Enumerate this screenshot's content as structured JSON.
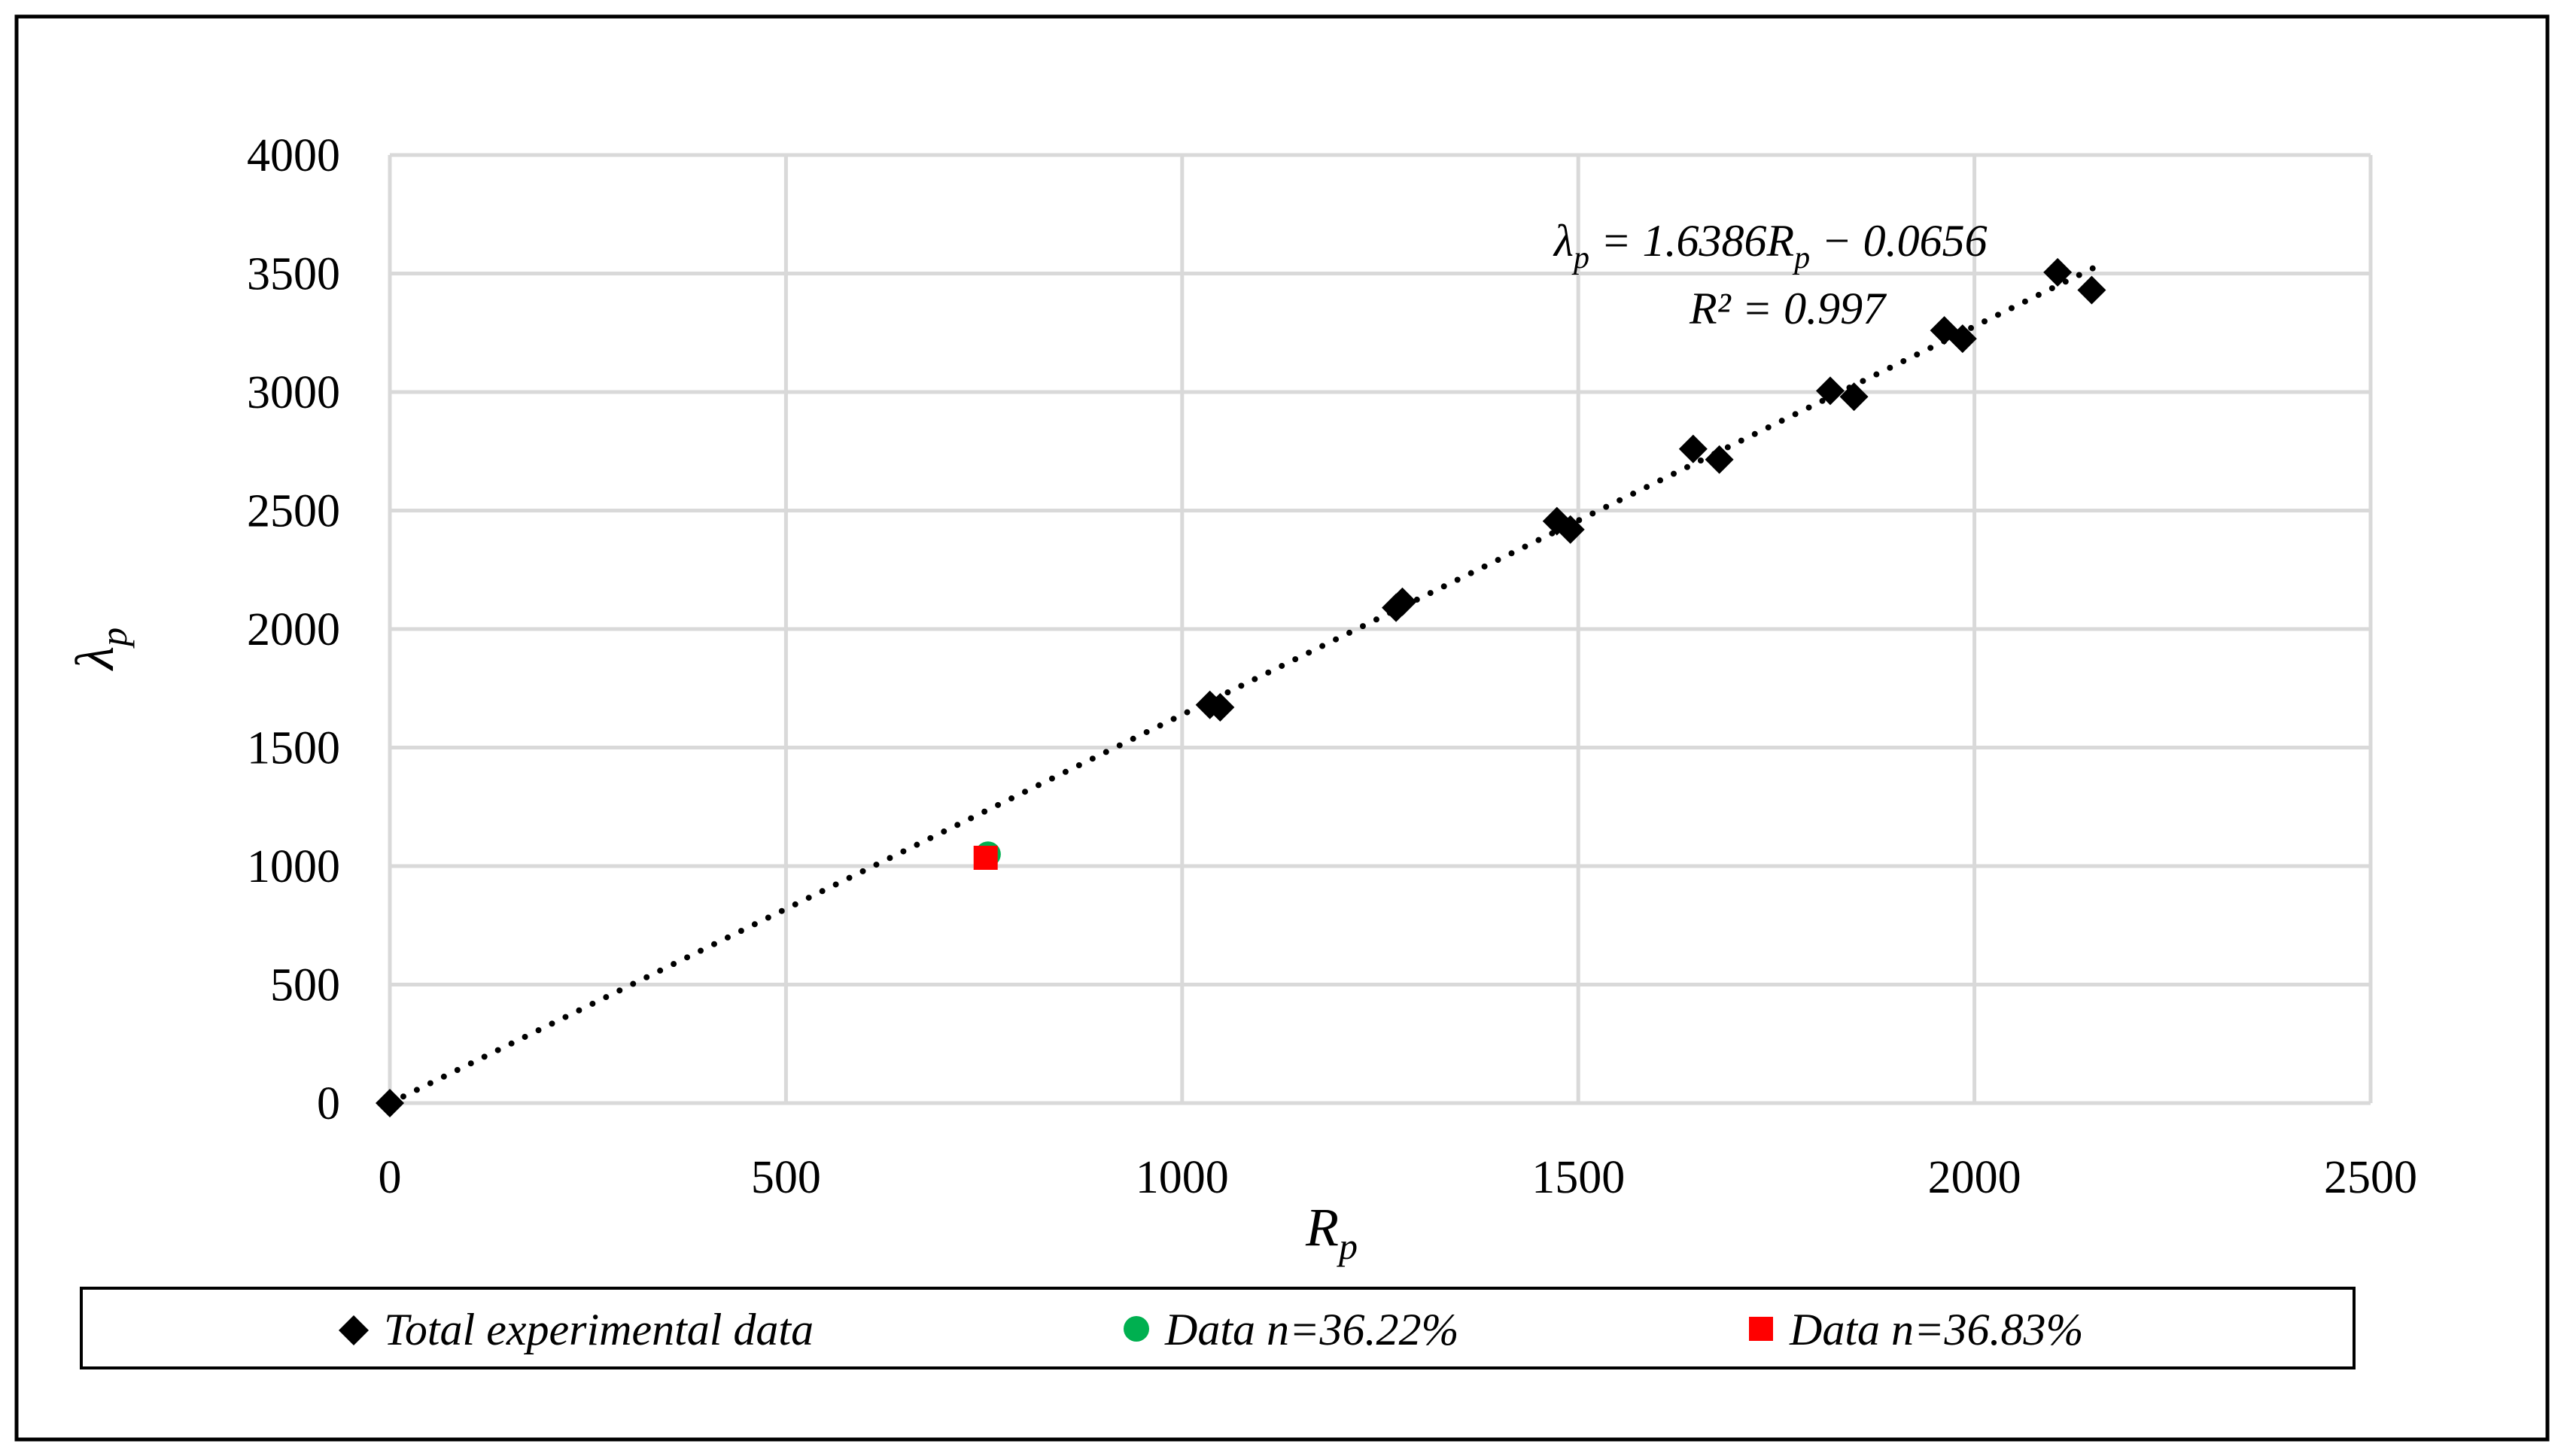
{
  "chart_data": {
    "type": "scatter",
    "xlabel": "R",
    "xlabel_sub": "p",
    "ylabel": "λ",
    "ylabel_sub": "p",
    "xlim": [
      0,
      2500
    ],
    "ylim": [
      0,
      4000
    ],
    "xticks": [
      0,
      500,
      1000,
      1500,
      2000,
      2500
    ],
    "yticks": [
      0,
      500,
      1000,
      1500,
      2000,
      2500,
      3000,
      3500,
      4000
    ],
    "grid": true,
    "legend_position": "bottom",
    "series": [
      {
        "name": "Total experimental data",
        "marker": "diamond",
        "color": "#000000",
        "points": [
          [
            0,
            0
          ],
          [
            1035,
            1680
          ],
          [
            1048,
            1670
          ],
          [
            1270,
            2090
          ],
          [
            1278,
            2115
          ],
          [
            1473,
            2455
          ],
          [
            1490,
            2420
          ],
          [
            1645,
            2760
          ],
          [
            1678,
            2715
          ],
          [
            1818,
            3005
          ],
          [
            1848,
            2980
          ],
          [
            1962,
            3260
          ],
          [
            1985,
            3225
          ],
          [
            2105,
            3505
          ],
          [
            2148,
            3430
          ]
        ]
      },
      {
        "name": "Data n=36.22%",
        "marker": "circle",
        "color": "#00b050",
        "points": [
          [
            755,
            1050
          ]
        ]
      },
      {
        "name": "Data n=36.83%",
        "marker": "square",
        "color": "#ff0000",
        "points": [
          [
            752,
            1035
          ]
        ]
      }
    ],
    "trendline": {
      "slope": 1.6386,
      "intercept": -0.0656,
      "x_range": [
        0,
        2150
      ],
      "style": "dotted",
      "color": "#000000"
    },
    "annotations": {
      "eq_lhs": "λ",
      "eq_lhs_sub": "p",
      "eq_mid": " = 1.6386R",
      "eq_mid_sub": "p",
      "eq_rhs": " − 0.0656",
      "r2": "R² = 0.997"
    }
  }
}
